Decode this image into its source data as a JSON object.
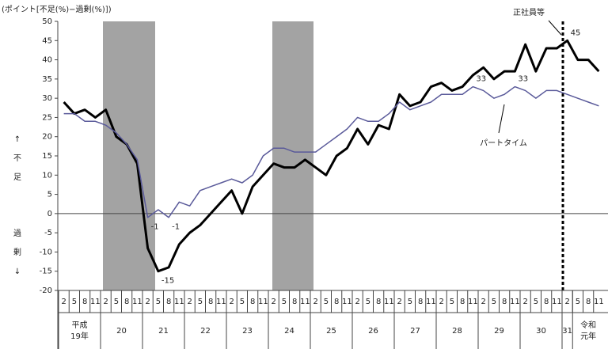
{
  "chart_data": {
    "type": "line",
    "y_label": "(ポイント[不足(%)−過剰(%)])",
    "side_label_up": [
      "↑",
      "不",
      "足"
    ],
    "side_label_down": [
      "過",
      "剰",
      "↓"
    ],
    "groups": [
      {
        "label": [
          "平成",
          "19年"
        ],
        "categories": [
          "2",
          "5",
          "8",
          "11"
        ]
      },
      {
        "label": [
          "20"
        ],
        "categories": [
          "2",
          "5",
          "8",
          "11"
        ]
      },
      {
        "label": [
          "21"
        ],
        "categories": [
          "2",
          "5",
          "8",
          "11"
        ]
      },
      {
        "label": [
          "22"
        ],
        "categories": [
          "2",
          "5",
          "8",
          "11"
        ]
      },
      {
        "label": [
          "23"
        ],
        "categories": [
          "2",
          "5",
          "8",
          "11"
        ]
      },
      {
        "label": [
          "24"
        ],
        "categories": [
          "2",
          "5",
          "8",
          "11"
        ]
      },
      {
        "label": [
          "25"
        ],
        "categories": [
          "2",
          "5",
          "8",
          "11"
        ]
      },
      {
        "label": [
          "26"
        ],
        "categories": [
          "2",
          "5",
          "8",
          "11"
        ]
      },
      {
        "label": [
          "27"
        ],
        "categories": [
          "2",
          "5",
          "8",
          "11"
        ]
      },
      {
        "label": [
          "28"
        ],
        "categories": [
          "2",
          "5",
          "8",
          "11"
        ]
      },
      {
        "label": [
          "29"
        ],
        "categories": [
          "2",
          "5",
          "8",
          "11"
        ]
      },
      {
        "label": [
          "30"
        ],
        "categories": [
          "2",
          "5",
          "8",
          "11"
        ]
      },
      {
        "label": [
          "31"
        ],
        "categories": [
          "2"
        ]
      },
      {
        "label": [
          "令和",
          "元年"
        ],
        "categories": [
          "5",
          "8",
          "11"
        ]
      }
    ],
    "series": [
      {
        "name": "正社員等",
        "color": "#000000",
        "width": 3,
        "values": [
          29,
          26,
          27,
          25,
          27,
          20,
          18,
          13,
          -9,
          -15,
          -14,
          -8,
          -5,
          -3,
          0,
          3,
          6,
          0,
          7,
          10,
          13,
          12,
          12,
          14,
          12,
          10,
          15,
          17,
          22,
          18,
          23,
          22,
          31,
          28,
          29,
          33,
          34,
          32,
          33,
          36,
          38,
          35,
          37,
          37,
          44,
          37,
          43,
          43,
          45,
          40,
          40,
          37
        ],
        "value_labels": [
          null,
          null,
          null,
          null,
          null,
          null,
          null,
          null,
          null,
          "-15",
          null,
          null,
          null,
          null,
          null,
          null,
          null,
          null,
          null,
          null,
          null,
          null,
          null,
          null,
          null,
          null,
          null,
          null,
          null,
          null,
          null,
          null,
          null,
          null,
          null,
          null,
          null,
          null,
          null,
          null,
          null,
          null,
          null,
          null,
          null,
          null,
          null,
          null,
          "45",
          null,
          null,
          null
        ]
      },
      {
        "name": "パートタイム",
        "color": "#5a5a9a",
        "width": 1.5,
        "values": [
          26,
          26,
          24,
          24,
          23,
          21,
          18,
          14,
          -1,
          1,
          -1,
          3,
          2,
          6,
          7,
          8,
          9,
          8,
          10,
          15,
          17,
          17,
          16,
          16,
          16,
          18,
          20,
          22,
          25,
          24,
          24,
          26,
          29,
          27,
          28,
          29,
          31,
          31,
          31,
          33,
          32,
          30,
          31,
          33,
          32,
          30,
          32,
          32,
          31,
          30,
          29,
          28
        ],
        "value_labels": [
          null,
          null,
          null,
          null,
          null,
          null,
          null,
          null,
          "-1",
          null,
          "-1",
          null,
          null,
          null,
          null,
          null,
          null,
          null,
          null,
          null,
          null,
          null,
          null,
          null,
          null,
          null,
          null,
          null,
          null,
          null,
          null,
          null,
          null,
          null,
          null,
          null,
          null,
          null,
          null,
          "33",
          null,
          null,
          null,
          "33",
          null,
          null,
          null,
          null,
          null,
          null,
          null,
          null
        ]
      }
    ],
    "ylim": [
      -20,
      50
    ],
    "yticks": [
      -20,
      -15,
      -10,
      -5,
      0,
      5,
      10,
      15,
      20,
      25,
      30,
      35,
      40,
      45,
      50
    ]
  }
}
